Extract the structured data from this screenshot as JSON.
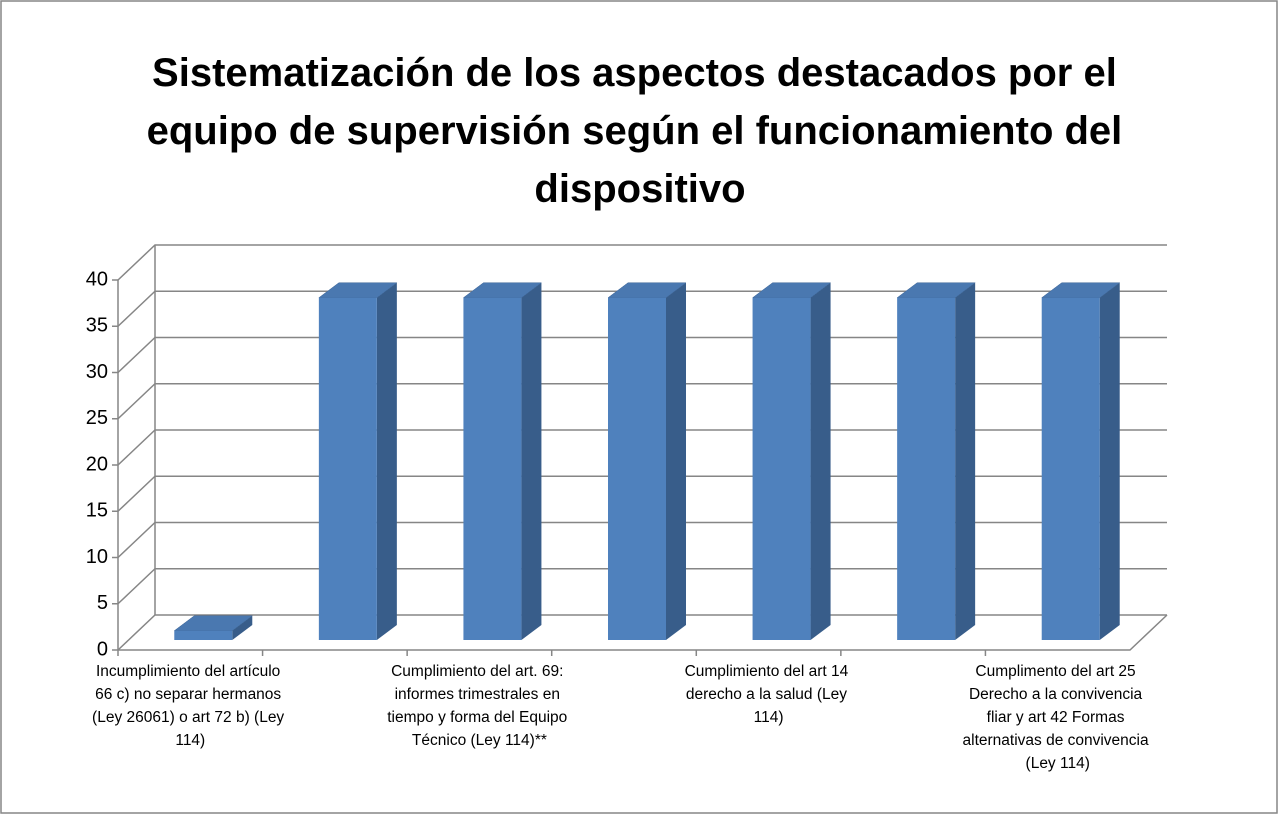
{
  "chart_data": {
    "type": "bar3d",
    "title": "Sistematización de los aspectos destacados por el equipo de supervisión según el funcionamiento del dispositivo",
    "categories": [
      "Incumplimiento del artículo 66 c) no separar hermanos (Ley 26061) o art 72 b) (Ley 114)",
      null,
      "Cumplimiento del art. 69: informes trimestrales en tiempo y forma del Equipo Técnico (Ley 114)**",
      null,
      "Cumplimiento del art 14 derecho a la salud (Ley 114)",
      null,
      "Cumplimento del art 25 Derecho a la convivencia fliar y art 42 Formas alternativas de convivencia (Ley 114)"
    ],
    "values": [
      1,
      37,
      37,
      37,
      37,
      37,
      37
    ],
    "color": "#4f81bd",
    "ylim": [
      0,
      40
    ],
    "yticks": [
      0,
      5,
      10,
      15,
      20,
      25,
      30,
      35,
      40
    ],
    "grid": true
  }
}
